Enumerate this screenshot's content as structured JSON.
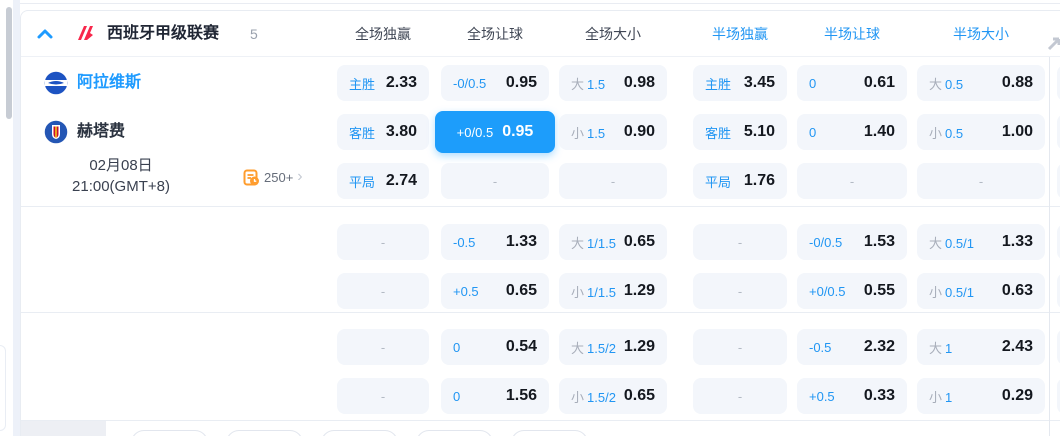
{
  "colors": {
    "accent": "#1d9dfb",
    "text_blue": "#2196f3",
    "cell_bg": "#f3f6fb"
  },
  "league_header": {
    "league_name": "西班牙甲级联赛",
    "match_count": "5",
    "columns": [
      "全场独赢",
      "全场让球",
      "全场大小",
      "半场独赢",
      "半场让球",
      "半场大小"
    ]
  },
  "match": {
    "home_team": "阿拉维斯",
    "away_team": "赫塔费",
    "date": "02月08日",
    "time": "21:00(GMT+8)",
    "markets_more": "250+"
  },
  "empty_placeholder": "-",
  "odds": {
    "sections": [
      {
        "rows": [
          {
            "cells": [
              {
                "label": "主胜",
                "value": "2.33"
              },
              {
                "label": "-0/0.5",
                "value": "0.95"
              },
              {
                "prefix": "大",
                "label": "1.5",
                "value": "0.98"
              },
              {
                "label": "主胜",
                "value": "3.45"
              },
              {
                "label": "0",
                "value": "0.61"
              },
              {
                "prefix": "大",
                "label": "0.5",
                "value": "0.88"
              }
            ]
          },
          {
            "cells": [
              {
                "label": "客胜",
                "value": "3.80"
              },
              {
                "label": "+0/0.5",
                "value": "0.95",
                "selected": true
              },
              {
                "prefix": "小",
                "label": "1.5",
                "value": "0.90"
              },
              {
                "label": "客胜",
                "value": "5.10"
              },
              {
                "label": "0",
                "value": "1.40"
              },
              {
                "prefix": "小",
                "label": "0.5",
                "value": "1.00"
              }
            ]
          },
          {
            "cells": [
              {
                "label": "平局",
                "value": "2.74"
              },
              {
                "empty": true
              },
              {
                "empty": true
              },
              {
                "label": "平局",
                "value": "1.76"
              },
              {
                "empty": true
              },
              {
                "empty": true
              }
            ]
          }
        ]
      },
      {
        "rows": [
          {
            "cells": [
              {
                "empty": true
              },
              {
                "label": "-0.5",
                "value": "1.33"
              },
              {
                "prefix": "大",
                "label": "1/1.5",
                "value": "0.65"
              },
              {
                "empty": true
              },
              {
                "label": "-0/0.5",
                "value": "1.53"
              },
              {
                "prefix": "大",
                "label": "0.5/1",
                "value": "1.33"
              }
            ]
          },
          {
            "cells": [
              {
                "empty": true
              },
              {
                "label": "+0.5",
                "value": "0.65"
              },
              {
                "prefix": "小",
                "label": "1/1.5",
                "value": "1.29"
              },
              {
                "empty": true
              },
              {
                "label": "+0/0.5",
                "value": "0.55"
              },
              {
                "prefix": "小",
                "label": "0.5/1",
                "value": "0.63"
              }
            ]
          }
        ]
      },
      {
        "rows": [
          {
            "cells": [
              {
                "empty": true
              },
              {
                "label": "0",
                "value": "0.54"
              },
              {
                "prefix": "大",
                "label": "1.5/2",
                "value": "1.29"
              },
              {
                "empty": true
              },
              {
                "label": "-0.5",
                "value": "2.32"
              },
              {
                "prefix": "大",
                "label": "1",
                "value": "2.43"
              }
            ]
          },
          {
            "cells": [
              {
                "empty": true
              },
              {
                "label": "0",
                "value": "1.56"
              },
              {
                "prefix": "小",
                "label": "1.5/2",
                "value": "0.65"
              },
              {
                "empty": true
              },
              {
                "label": "+0.5",
                "value": "0.33"
              },
              {
                "prefix": "小",
                "label": "1",
                "value": "0.29"
              }
            ]
          }
        ]
      }
    ]
  }
}
